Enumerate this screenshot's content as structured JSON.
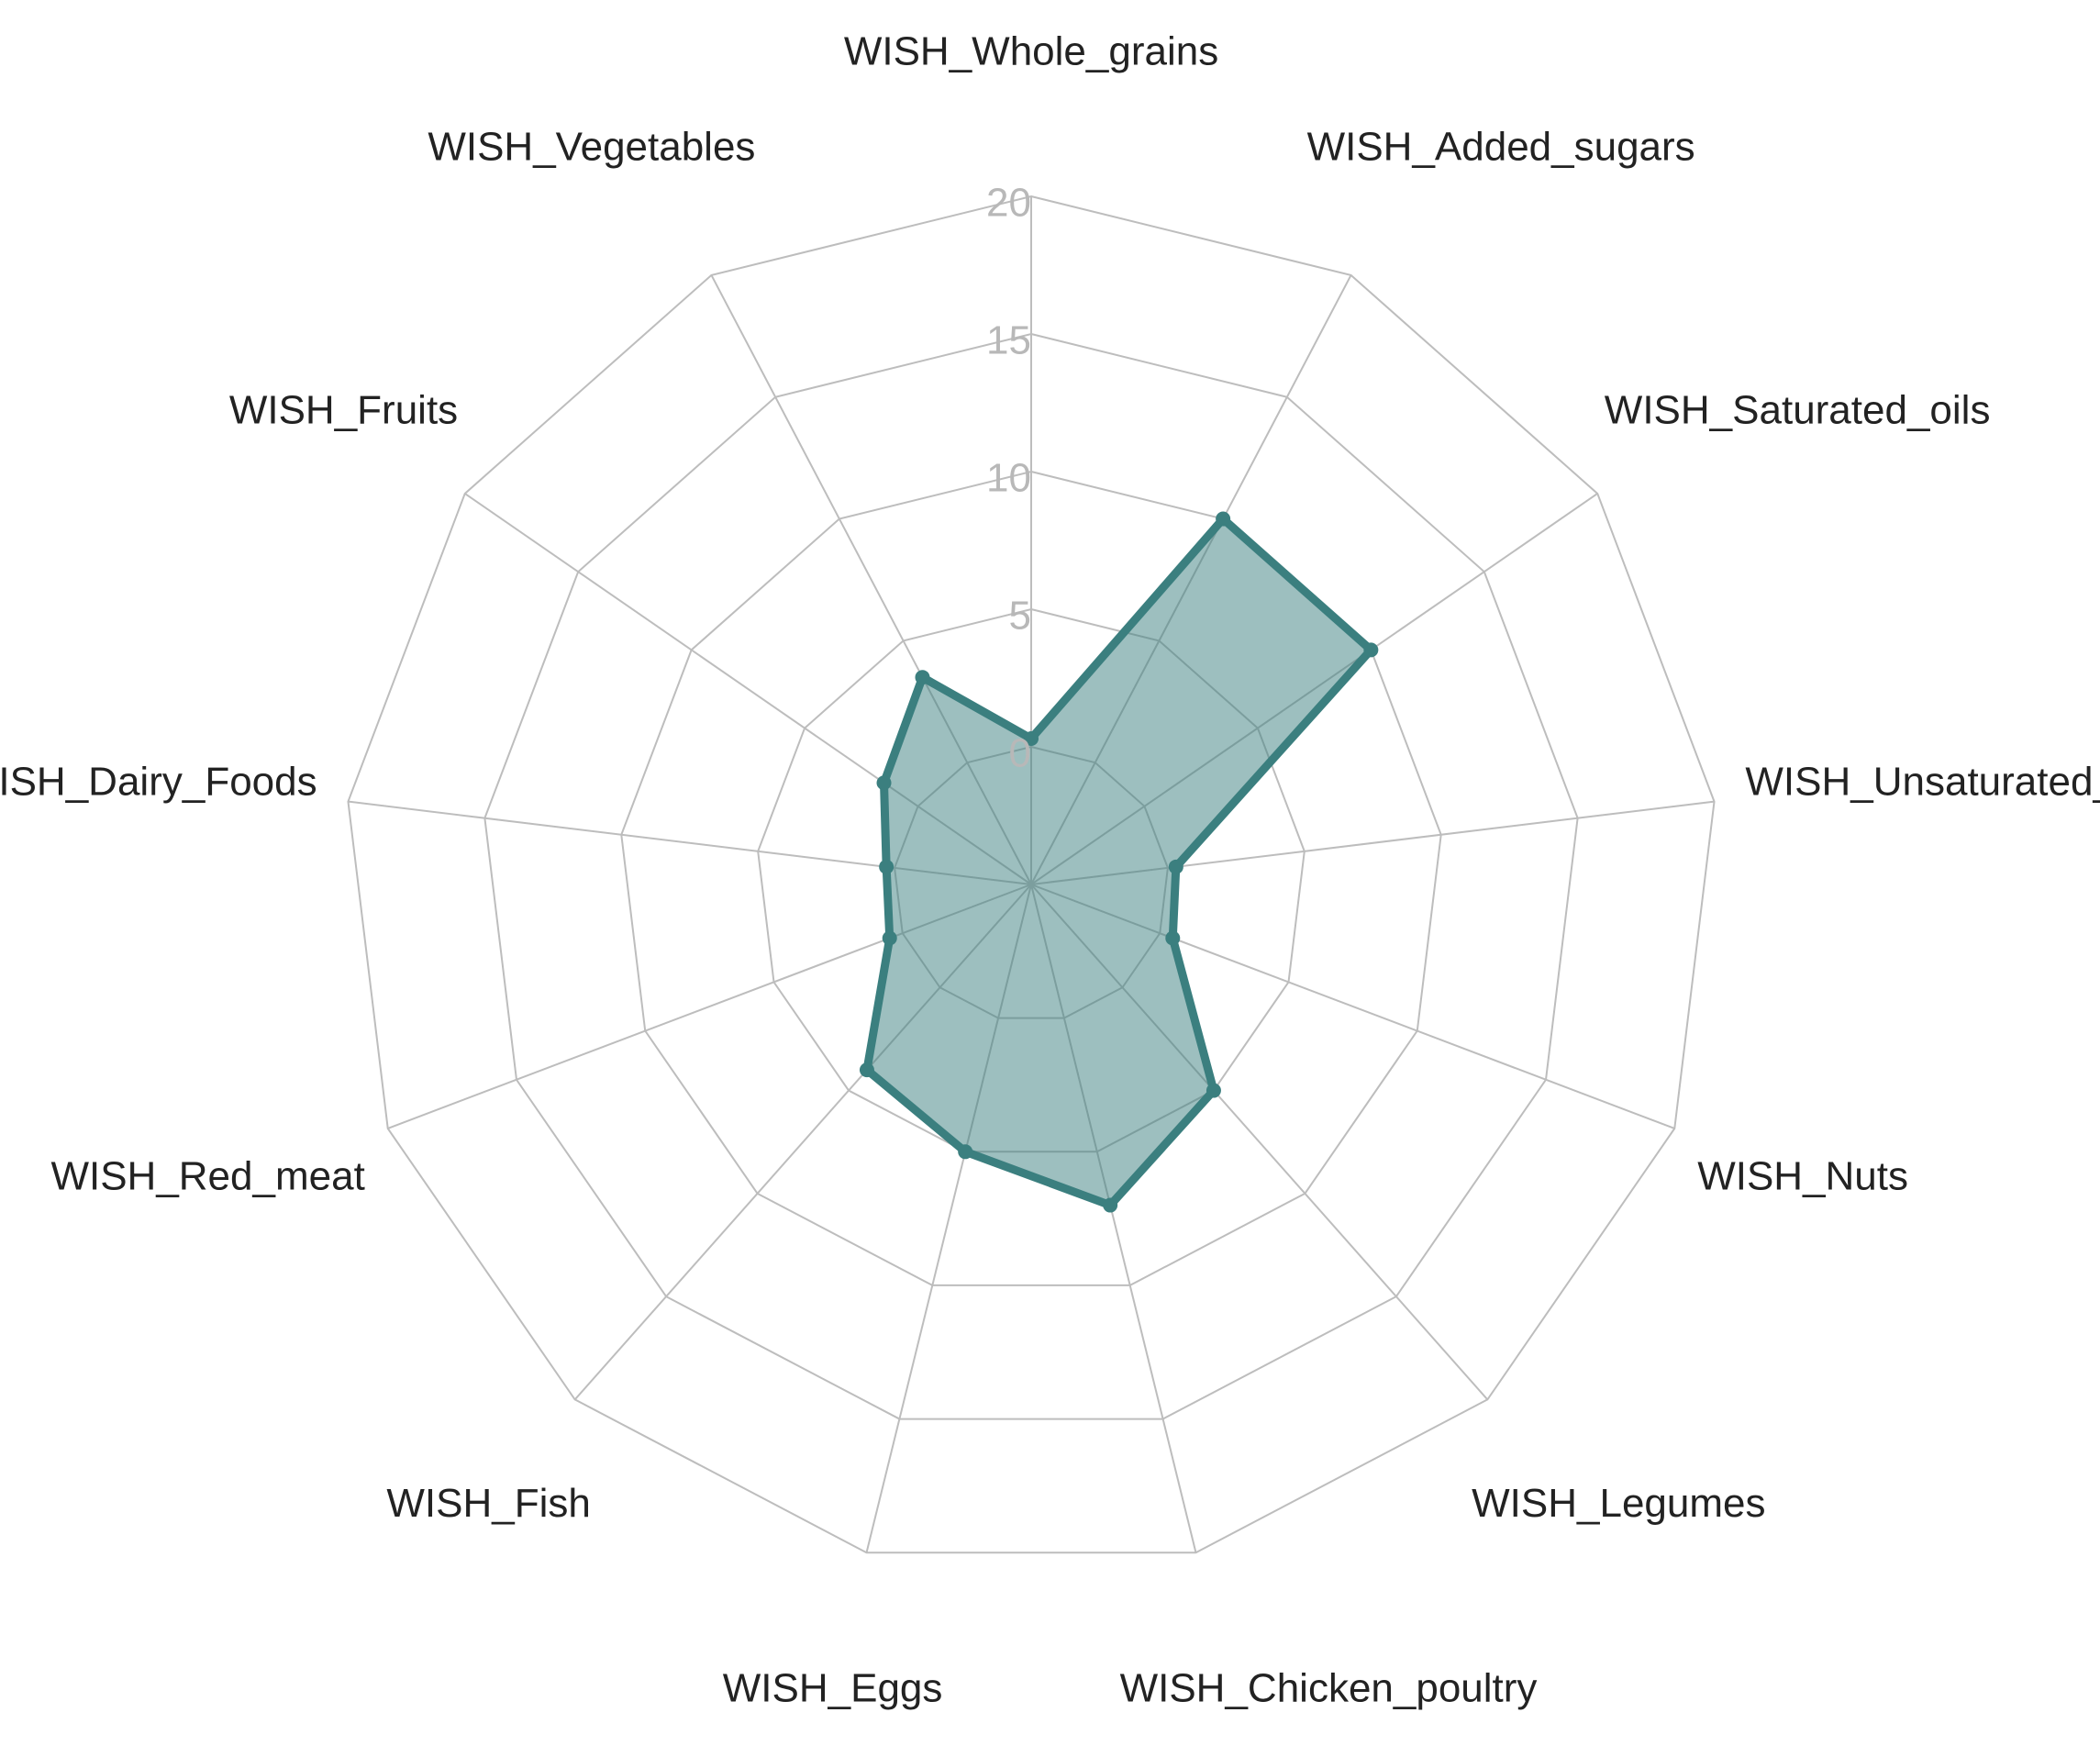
{
  "chart_data": {
    "type": "radar",
    "categories": [
      "WISH_Whole_grains",
      "WISH_Added_sugars",
      "WISH_Saturated_oils",
      "WISH_Unsaturated_oils",
      "WISH_Nuts",
      "WISH_Legumes",
      "WISH_Chicken_poultry",
      "WISH_Eggs",
      "WISH_Fish",
      "WISH_Red_meat",
      "WISH_Dairy_Foods",
      "WISH_Fruits",
      "WISH_Vegetables"
    ],
    "series": [
      {
        "color": "#3b7f7f",
        "values": [
          0.3,
          10,
          10,
          0.3,
          0.5,
          5,
          7,
          5,
          4,
          0.5,
          0.3,
          1.5,
          3.5
        ]
      }
    ],
    "ylim": [
      0,
      20
    ],
    "yticks": [
      0,
      5,
      10,
      15,
      20
    ],
    "grid": true
  }
}
